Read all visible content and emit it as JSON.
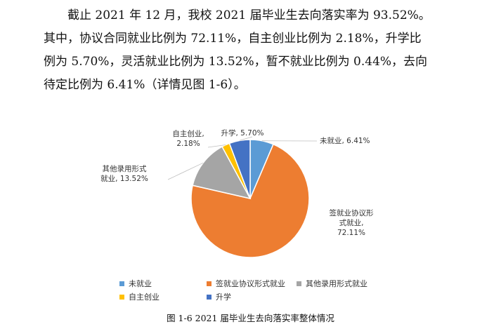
{
  "paragraph": {
    "lines": [
      "截止 2021 年 12 月，我校 2021 届毕业生去向落实率为 93.52%。",
      "其中，协议合同就业比例为 72.11%，自主创业比例为 2.18%，升学比",
      "例为 5.70%，灵活就业比例为 13.52%，暂不就业比例为 0.44%，去向",
      "待定比例为 6.41%（详情见图 1-6）。"
    ]
  },
  "chart_data": {
    "type": "pie",
    "title": "",
    "slices": [
      {
        "name": "未就业",
        "value": 6.41,
        "color": "#5B9BD5",
        "label_lines": [
          "未就业, 6.41%"
        ]
      },
      {
        "name": "签就业协议形式就业",
        "value": 72.11,
        "color": "#ED7D31",
        "label_lines": [
          "签就业协议形",
          "式就业,",
          "72.11%"
        ]
      },
      {
        "name": "其他录用形式就业",
        "value": 13.52,
        "color": "#A5A5A5",
        "label_lines": [
          "其他录用形式",
          "就业, 13.52%"
        ]
      },
      {
        "name": "自主创业",
        "value": 2.18,
        "color": "#FFC000",
        "label_lines": [
          "自主创业,",
          "2.18%"
        ]
      },
      {
        "name": "升学",
        "value": 5.7,
        "color": "#4472C4",
        "label_lines": [
          "升学, 5.70%"
        ]
      }
    ],
    "legend_position": "bottom"
  },
  "caption": "图 1-6   2021 届毕业生去向落实率整体情况"
}
